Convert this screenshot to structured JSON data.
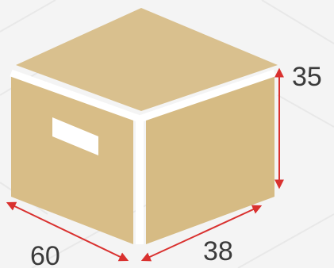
{
  "colors": {
    "background": "#f4f4f4",
    "background_pattern": "#e6e6e6",
    "box_top": "#d9c08e",
    "box_front": "#d8bd87",
    "box_side": "#d6bb84",
    "box_edge": "#ffffff",
    "handle": "#ffffff",
    "dimension_line": "#d9312f",
    "label_text": "#3b3b3b"
  },
  "dimensions": {
    "height": "35",
    "depth": "38",
    "width": "60"
  }
}
